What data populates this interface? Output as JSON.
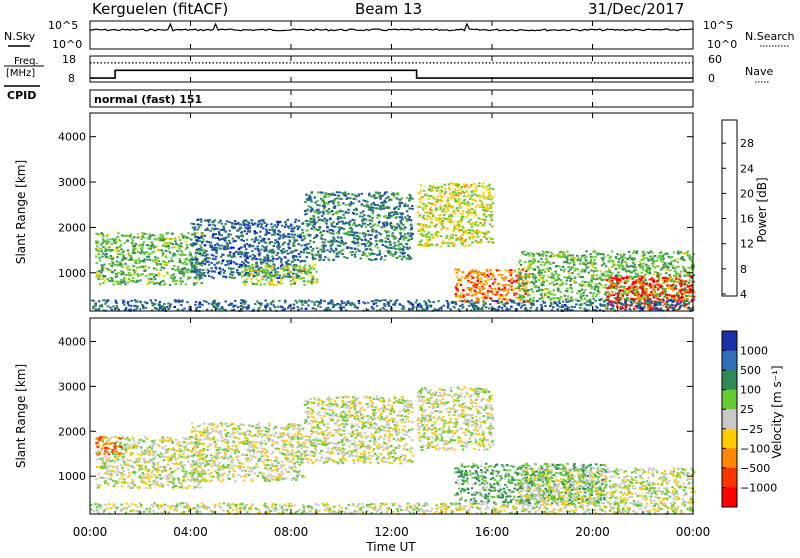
{
  "header": {
    "station": "Kerguelen (fitACF)",
    "beam": "Beam 13",
    "date": "31/Dec/2017"
  },
  "noise_panel": {
    "left_label": "N.Sky",
    "right_label": "N.Search",
    "left_ticks": [
      "10^5",
      "10^0"
    ],
    "right_ticks": [
      "10^5",
      "10^0"
    ]
  },
  "freq_panel": {
    "left_label_1": "Freq.",
    "left_label_2": "[MHz]",
    "left_ticks": [
      "18",
      "8"
    ],
    "right_label": "Nave",
    "right_ticks": [
      "60",
      "0"
    ],
    "cpid_label": "CPID",
    "mode_text": "normal (fast) 151"
  },
  "power_panel": {
    "ylabel": "Slant Range [km]",
    "yticks": [
      "4000",
      "3000",
      "2000",
      "1000"
    ],
    "colorbar_label": "Power [dB]",
    "colorbar_ticks": [
      "28",
      "24",
      "20",
      "16",
      "12",
      "8",
      "4"
    ],
    "colors": [
      "#0000ff",
      "#1f4fa8",
      "#2e8b57",
      "#66cc33",
      "#ffcc00",
      "#ff8800",
      "#ff0000"
    ]
  },
  "velocity_panel": {
    "ylabel": "Slant Range [km]",
    "yticks": [
      "4000",
      "3000",
      "2000",
      "1000"
    ],
    "colorbar_label": "Velocity [m s⁻¹]",
    "colorbar_ticks": [
      "1000",
      "500",
      "100",
      "25",
      "−25",
      "−100",
      "−500",
      "−1000"
    ],
    "colors": [
      "#1a2fa8",
      "#2e6fb8",
      "#2e8b57",
      "#66cc33",
      "#c8c8c8",
      "#ffcc00",
      "#ff8800",
      "#ff3300",
      "#ff0000"
    ]
  },
  "xaxis": {
    "ticks": [
      "00:00",
      "04:00",
      "08:00",
      "12:00",
      "16:00",
      "20:00",
      "00:00"
    ],
    "label": "Time UT"
  },
  "chart_data": [
    {
      "type": "line",
      "name": "noise",
      "y_scale": "log",
      "ylim": [
        1,
        100000
      ]
    },
    {
      "type": "line",
      "name": "frequency",
      "x": [
        "00:00",
        "01:00",
        "01:00",
        "13:00",
        "13:00",
        "24:00"
      ],
      "values": [
        9.5,
        9.5,
        12.5,
        12.5,
        9.5,
        9.5
      ],
      "ylim": [
        8,
        18
      ],
      "nave_level": 44
    },
    {
      "type": "heatmap",
      "name": "power",
      "xlim": [
        "00:00",
        "24:00"
      ],
      "ylim": [
        180,
        4500
      ],
      "zlim": [
        0,
        30
      ],
      "regions": [
        {
          "t": [
            0.2,
            4.5
          ],
          "r": [
            750,
            1900
          ],
          "z": 14
        },
        {
          "t": [
            4.0,
            8.5
          ],
          "r": [
            900,
            2200
          ],
          "z": 8
        },
        {
          "t": [
            6.0,
            9.0
          ],
          "r": [
            750,
            1200
          ],
          "z": 16
        },
        {
          "t": [
            8.5,
            12.8
          ],
          "r": [
            1300,
            2800
          ],
          "z": 10
        },
        {
          "t": [
            13.0,
            16.0
          ],
          "r": [
            1600,
            3000
          ],
          "z": 18
        },
        {
          "t": [
            14.5,
            17.5
          ],
          "r": [
            350,
            1100
          ],
          "z": 24
        },
        {
          "t": [
            17.0,
            24.0
          ],
          "r": [
            400,
            1500
          ],
          "z": 14
        },
        {
          "t": [
            20.5,
            24.0
          ],
          "r": [
            200,
            950
          ],
          "z": 27
        },
        {
          "t": [
            0.0,
            24.0
          ],
          "r": [
            180,
            420
          ],
          "z": 8
        }
      ]
    },
    {
      "type": "heatmap",
      "name": "velocity",
      "xlim": [
        "00:00",
        "24:00"
      ],
      "ylim": [
        180,
        4500
      ],
      "zlim": [
        -1000,
        1000
      ],
      "regions": [
        {
          "t": [
            0.2,
            4.5
          ],
          "r": [
            750,
            1900
          ],
          "v": 0
        },
        {
          "t": [
            0.2,
            1.2
          ],
          "r": [
            1500,
            1900
          ],
          "v": -300
        },
        {
          "t": [
            4.0,
            8.5
          ],
          "r": [
            900,
            2200
          ],
          "v": 0
        },
        {
          "t": [
            8.5,
            12.8
          ],
          "r": [
            1300,
            2800
          ],
          "v": 0
        },
        {
          "t": [
            13.0,
            16.0
          ],
          "r": [
            1600,
            3000
          ],
          "v": 0
        },
        {
          "t": [
            14.5,
            20.5
          ],
          "r": [
            400,
            1300
          ],
          "v": 60
        },
        {
          "t": [
            17.0,
            24.0
          ],
          "r": [
            400,
            1200
          ],
          "v": 0
        },
        {
          "t": [
            0.0,
            24.0
          ],
          "r": [
            180,
            420
          ],
          "v": 0
        }
      ]
    }
  ]
}
